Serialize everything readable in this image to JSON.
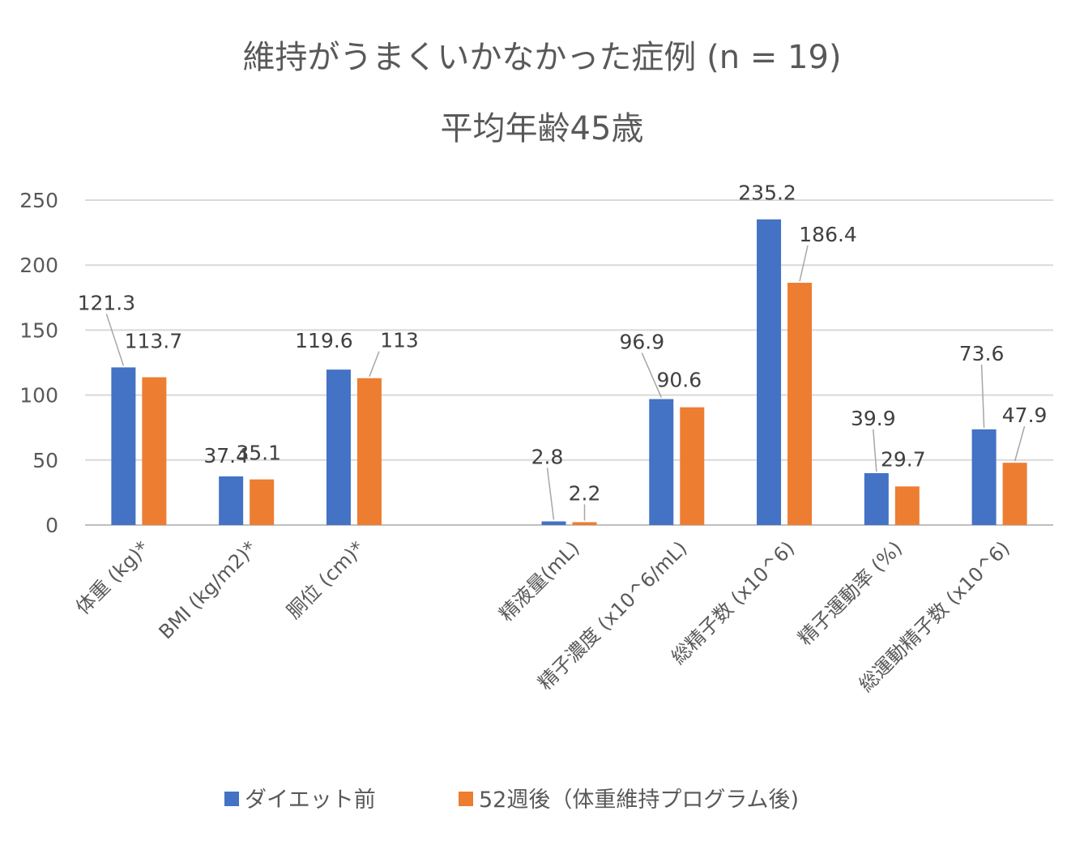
{
  "chart_data": {
    "type": "bar",
    "title": "維持がうまくいかなかった症例 (n = 19)",
    "subtitle": "平均年齢45歳",
    "xlabel": "",
    "ylabel": "",
    "ylim": [
      0,
      250
    ],
    "yticks": [
      "0",
      "50",
      "100",
      "150",
      "200",
      "250"
    ],
    "grid": true,
    "legend_position": "bottom",
    "categories": [
      "体重 (kg)*",
      "BMI (kg/m2)*",
      "胴位 (cm)*",
      "",
      "精液量(mL)",
      "精子濃度 (x10^6/mL)",
      "総精子数 (x10^6)",
      "精子運動率 (%)",
      "総運動精子数 (x10^6)"
    ],
    "series": [
      {
        "name": "ダイエット前",
        "color": "#4472C4",
        "values": [
          121.3,
          37.4,
          119.6,
          null,
          2.8,
          96.9,
          235.2,
          39.9,
          73.6
        ]
      },
      {
        "name": "52週後（体重維持プログラム後)",
        "color": "#ED7D31",
        "values": [
          113.7,
          35.1,
          113,
          null,
          2.2,
          90.6,
          186.4,
          29.7,
          47.9
        ]
      }
    ]
  }
}
